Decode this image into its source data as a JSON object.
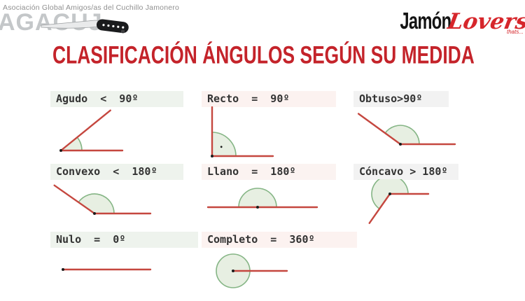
{
  "page_type": "educational-slide",
  "header": {
    "left_logo": {
      "tagline": "Asociación Global Amigos/as del Cuchillo Jamonero",
      "brand": "AGACUJ",
      "registered_mark": "®",
      "knife_icon": "ham-knife-icon"
    },
    "right_logo": {
      "brand_black": "Jamón",
      "brand_red": "Lovers",
      "tagline": "thats...",
      "red_color": "#d6262b"
    }
  },
  "title": {
    "text": "CLASIFICACIÓN ÁNGULOS SEGÚN SU MEDIDA",
    "color": "#c4232a"
  },
  "colors": {
    "ray": "#c5473f",
    "sector_fill": "#e7efe2",
    "sector_stroke": "#85b585",
    "dot": "#1b1b1b",
    "label_text": "#333333"
  },
  "angles": {
    "items": [
      {
        "name": "agudo",
        "label": "Agudo  <  90º",
        "drawn_angle_deg": 39,
        "diagram_icon": "acute-angle-diagram"
      },
      {
        "name": "recto",
        "label": "Recto  =  90º",
        "drawn_angle_deg": 90,
        "diagram_icon": "right-angle-diagram"
      },
      {
        "name": "obtuso",
        "label": "Obtuso>90º",
        "drawn_angle_deg": 144,
        "diagram_icon": "obtuse-angle-diagram"
      },
      {
        "name": "convexo",
        "label": "Convexo  <  180º",
        "drawn_angle_deg": 145,
        "diagram_icon": "convex-angle-diagram"
      },
      {
        "name": "llano",
        "label": "Llano  =  180º",
        "drawn_angle_deg": 180,
        "diagram_icon": "straight-angle-diagram"
      },
      {
        "name": "concavo",
        "label": "Cóncavo > 180º",
        "drawn_angle_deg": 235,
        "diagram_icon": "reflex-angle-diagram"
      },
      {
        "name": "nulo",
        "label": "Nulo  =  0º",
        "drawn_angle_deg": 0,
        "diagram_icon": "null-angle-diagram"
      },
      {
        "name": "completo",
        "label": "Completo  =  360º",
        "drawn_angle_deg": 360,
        "diagram_icon": "complete-angle-diagram"
      }
    ]
  }
}
